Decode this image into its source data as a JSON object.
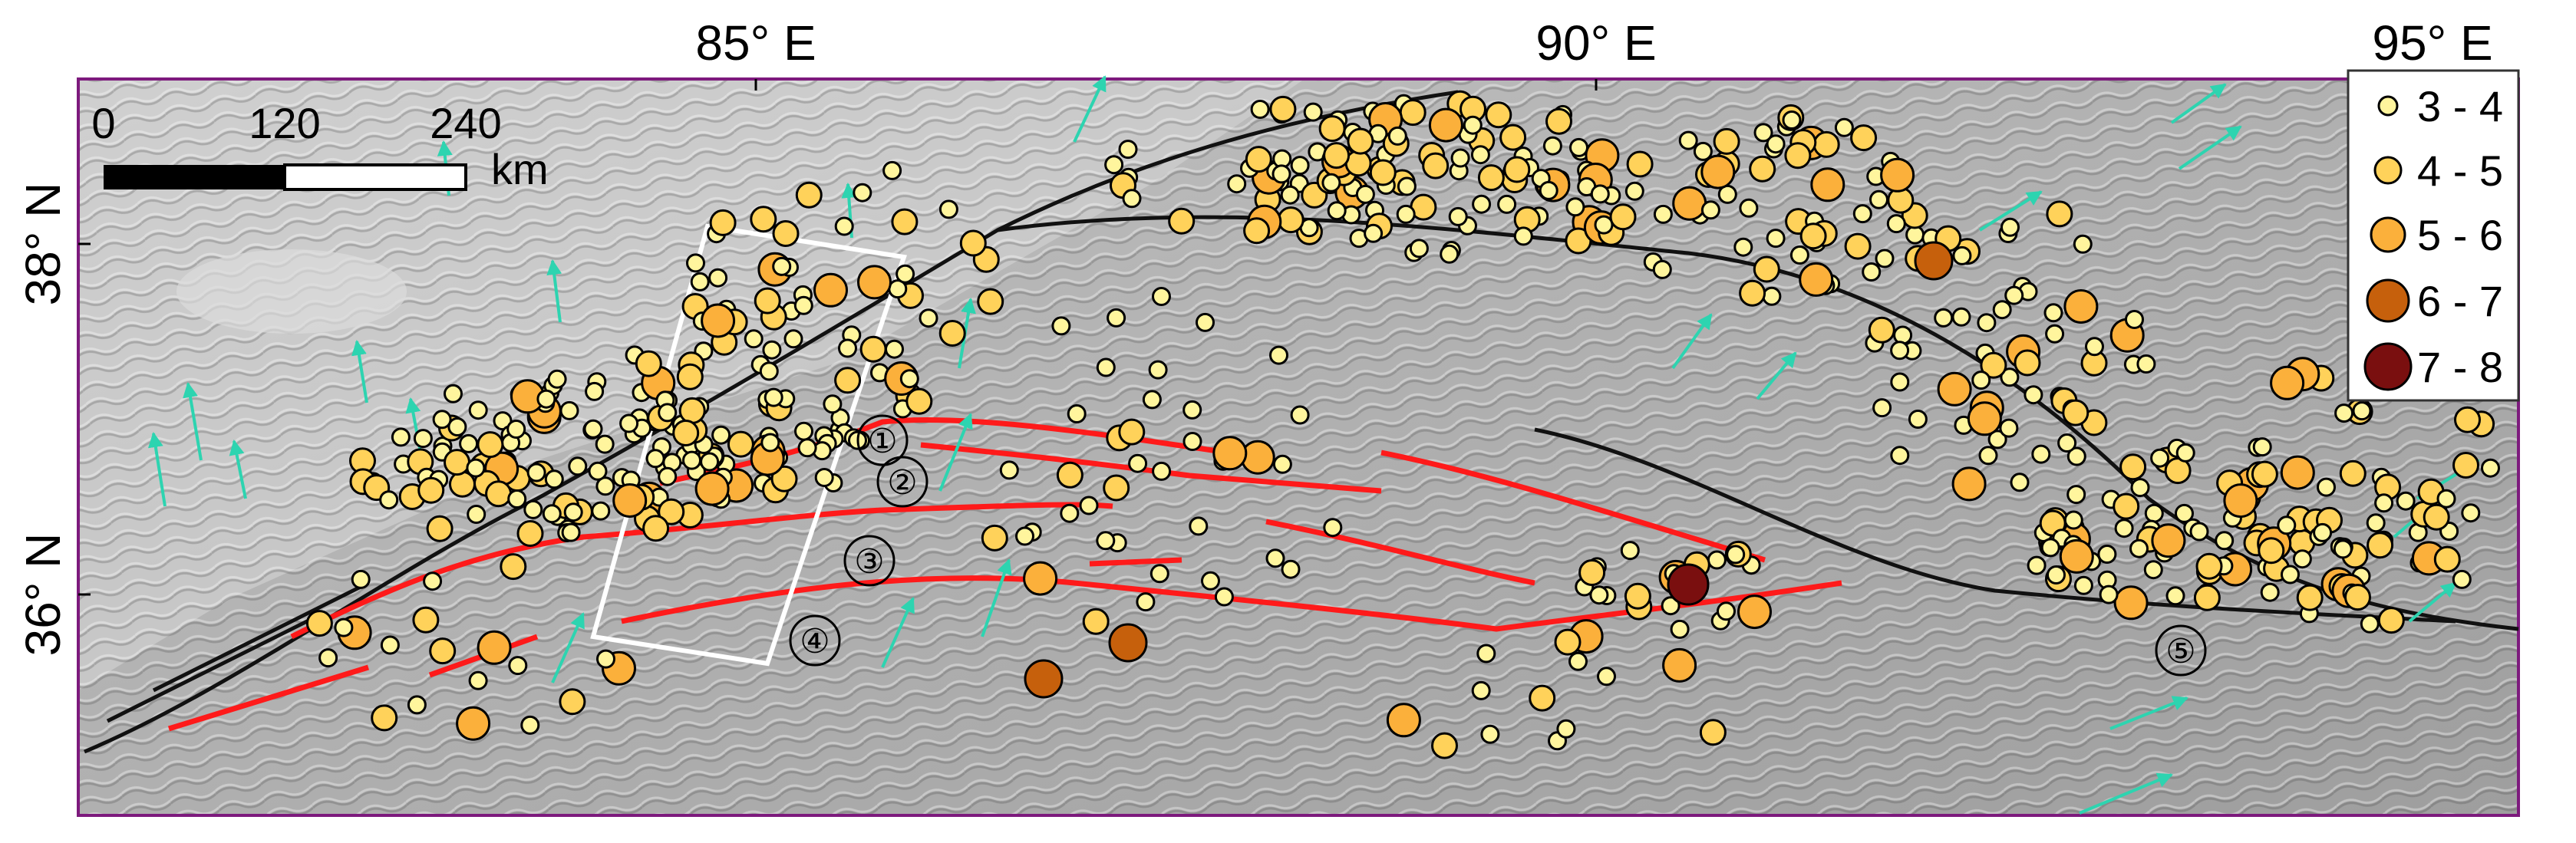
{
  "axes": {
    "lon_labels": [
      "85° E",
      "90° E",
      "95° E"
    ],
    "lat_labels": [
      "38° N",
      "36° N"
    ]
  },
  "scale_bar": {
    "ticks": [
      "0",
      "120",
      "240"
    ],
    "unit": "km"
  },
  "legend": {
    "items": [
      {
        "label": "3 - 4",
        "color": "#fff59d"
      },
      {
        "label": "4 - 5",
        "color": "#ffd25a"
      },
      {
        "label": "5 - 6",
        "color": "#fbb03b"
      },
      {
        "label": "6 - 7",
        "color": "#c6600c"
      },
      {
        "label": "7 - 8",
        "color": "#7a0f0f"
      }
    ]
  },
  "fault_labels": [
    "①",
    "②",
    "③",
    "④",
    "⑤"
  ],
  "colors": {
    "fault": "#ff1a1a",
    "velocity_arrow": "#2dd4b0",
    "study_box": "#ffffff",
    "frame": "#7d1a7d"
  }
}
